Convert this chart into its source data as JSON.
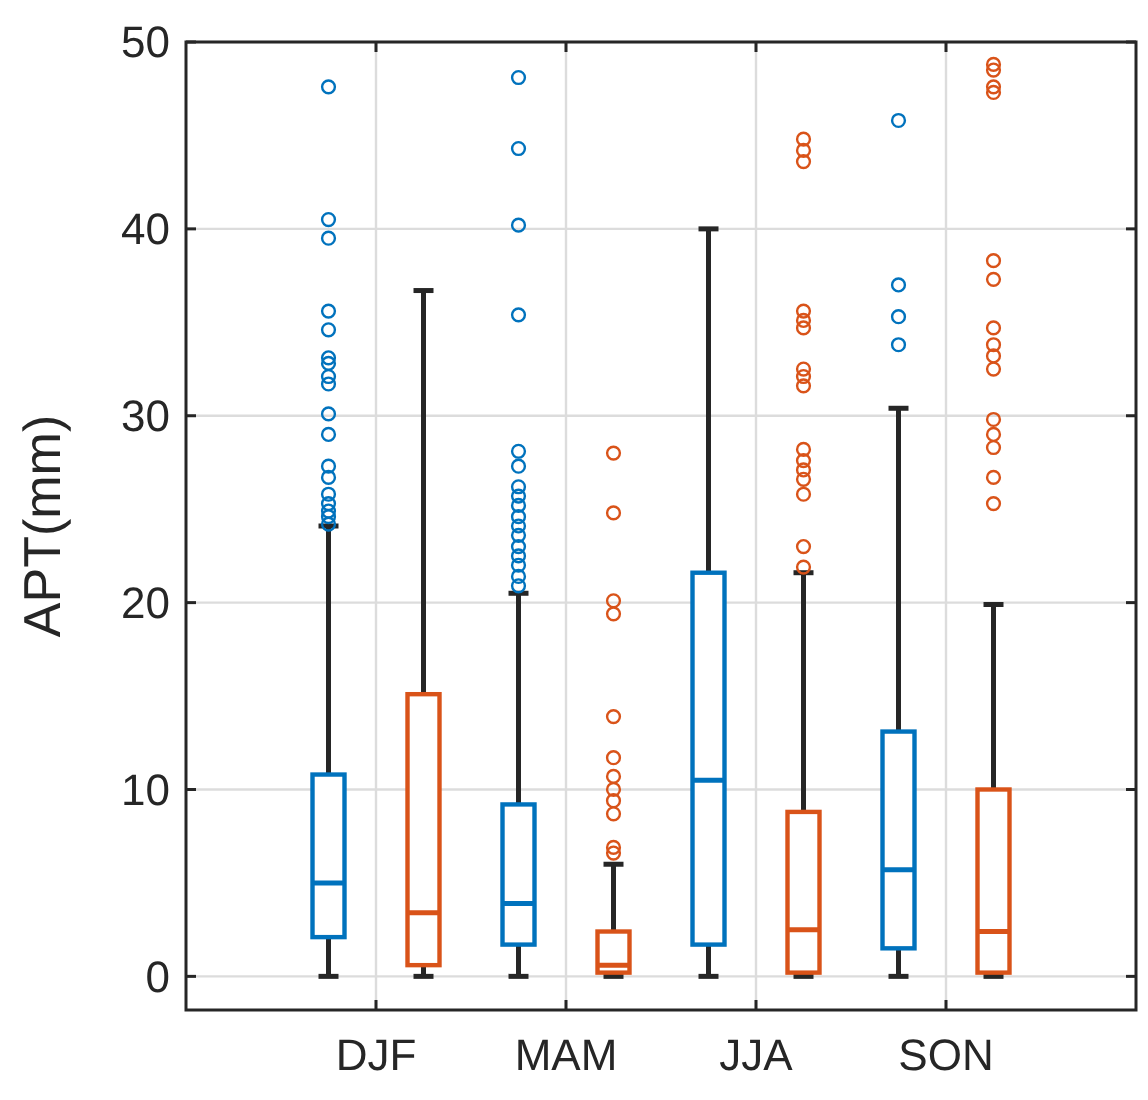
{
  "chart_data": {
    "type": "box",
    "ylabel": "APT(mm)",
    "categories": [
      "DJF",
      "MAM",
      "JJA",
      "SON"
    ],
    "ylim": [
      -1.8,
      50
    ],
    "yticks": [
      0,
      10,
      20,
      30,
      40,
      50
    ],
    "grid": true,
    "series": [
      {
        "color": "#0072bd",
        "boxes": [
          {
            "low": 0,
            "q1": 2.1,
            "median": 5.0,
            "q3": 10.8,
            "high": 24.1,
            "outliers": [
              47.6,
              40.5,
              39.5,
              35.6,
              34.6,
              33.1,
              32.8,
              32.1,
              31.7,
              30.1,
              29.0,
              27.3,
              26.7,
              25.8,
              25.3,
              24.9,
              24.6,
              24.2
            ]
          },
          {
            "low": 0,
            "q1": 1.7,
            "median": 3.9,
            "q3": 9.2,
            "high": 20.5,
            "outliers": [
              48.1,
              44.3,
              40.2,
              35.4,
              28.1,
              27.3,
              26.2,
              25.7,
              25.2,
              24.6,
              24.1,
              23.6,
              23.0,
              22.5,
              22.0,
              21.4,
              20.9
            ]
          },
          {
            "low": 0,
            "q1": 1.7,
            "median": 10.5,
            "q3": 21.6,
            "high": 40.0
          },
          {
            "low": 0,
            "q1": 1.5,
            "median": 5.7,
            "q3": 13.1,
            "high": 30.4,
            "outliers": [
              45.8,
              37.0,
              35.3,
              33.8
            ]
          }
        ]
      },
      {
        "color": "#d95319",
        "boxes": [
          {
            "low": 0,
            "q1": 0.6,
            "median": 3.4,
            "q3": 15.1,
            "high": 36.7
          },
          {
            "low": 0,
            "q1": 0.2,
            "median": 0.6,
            "q3": 2.4,
            "high": 6.0,
            "outliers": [
              28.0,
              24.8,
              20.1,
              19.4,
              13.9,
              11.7,
              10.7,
              10.0,
              9.4,
              8.7,
              6.9,
              6.6
            ]
          },
          {
            "low": 0,
            "q1": 0.2,
            "median": 2.5,
            "q3": 8.8,
            "high": 21.6,
            "outliers": [
              44.8,
              44.2,
              43.6,
              35.6,
              35.1,
              34.7,
              32.5,
              32.1,
              31.6,
              28.2,
              27.6,
              27.1,
              26.6,
              25.8,
              23.0,
              21.9
            ]
          },
          {
            "low": 0,
            "q1": 0.2,
            "median": 2.4,
            "q3": 10.0,
            "high": 19.9,
            "outliers": [
              48.8,
              48.5,
              47.6,
              47.3,
              38.3,
              37.3,
              34.7,
              33.8,
              33.2,
              32.5,
              29.8,
              29.0,
              28.3,
              26.7,
              25.3
            ]
          }
        ]
      }
    ]
  }
}
